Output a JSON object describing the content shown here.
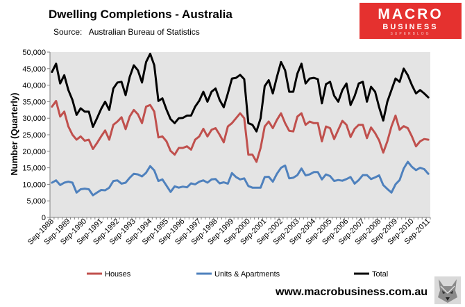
{
  "header": {
    "title": "Dwelling Completions - Australia",
    "source_label": "Source:",
    "source": "Australian Bureau of Statistics"
  },
  "logo": {
    "line1": "MACRO",
    "line2": "BUSINESS",
    "line3": "SUPERBLOG"
  },
  "footer": {
    "website": "www.macrobusiness.com.au"
  },
  "colors": {
    "houses": "#c0504d",
    "units": "#4f81bd",
    "total": "#000000",
    "plot_bg": "#e4e4e4",
    "logo": "#e5312f"
  },
  "chart_data": {
    "type": "line",
    "title": "Dwelling Completions - Australia",
    "xlabel": "",
    "ylabel": "Number (Quarterly)",
    "ylim": [
      0,
      50000
    ],
    "ytick_step": 5000,
    "ytick_labels": [
      "0",
      "5,000",
      "10,000",
      "15,000",
      "20,000",
      "25,000",
      "30,000",
      "35,000",
      "40,000",
      "45,000",
      "50,000"
    ],
    "x_start_label": "Sep-1988",
    "quarters_count": 93,
    "x_tick_labels": [
      "Sep-1988",
      "Sep-1989",
      "Sep-1990",
      "Sep-1991",
      "Sep-1992",
      "Sep-1993",
      "Sep-1994",
      "Sep-1995",
      "Sep-1996",
      "Sep-1997",
      "Sep-1998",
      "Sep-1999",
      "Sep-2000",
      "Sep-2001",
      "Sep-2002",
      "Sep-2003",
      "Sep-2004",
      "Sep-2005",
      "Sep-2006",
      "Sep-2007",
      "Sep-2008",
      "Sep-2009",
      "Sep-2010",
      "Sep-2011"
    ],
    "legend_position": "bottom",
    "series": [
      {
        "name": "Houses",
        "color": "#c0504d",
        "values": [
          33500,
          35200,
          30500,
          32000,
          27500,
          25000,
          23500,
          24500,
          23200,
          23500,
          20700,
          22500,
          24500,
          26300,
          23500,
          28000,
          29000,
          30300,
          26700,
          30500,
          32500,
          31200,
          28500,
          33500,
          34000,
          32000,
          24200,
          24500,
          23000,
          20100,
          19000,
          21000,
          21000,
          21500,
          20500,
          23500,
          24500,
          26800,
          24500,
          26500,
          27000,
          25000,
          22700,
          27500,
          28500,
          30000,
          31500,
          30000,
          19000,
          19000,
          16800,
          21000,
          27500,
          29000,
          27000,
          29500,
          31500,
          28500,
          26200,
          26000,
          30500,
          31500,
          28000,
          29000,
          28500,
          28500,
          23000,
          27500,
          27000,
          23700,
          26500,
          29200,
          28000,
          24300,
          26800,
          28000,
          28000,
          24000,
          27200,
          25500,
          23300,
          19600,
          23000,
          27500,
          30800,
          26500,
          27600,
          27000,
          24500,
          21500,
          23000,
          23700,
          23500
        ]
      },
      {
        "name": "Units & Apartments",
        "color": "#4f81bd",
        "values": [
          10500,
          11200,
          9800,
          10500,
          10800,
          10500,
          7500,
          8500,
          8700,
          8500,
          6700,
          7500,
          8300,
          8200,
          9000,
          11000,
          11200,
          10200,
          10500,
          12000,
          13200,
          13000,
          12400,
          13500,
          15500,
          14200,
          11000,
          11500,
          9600,
          7700,
          9400,
          9000,
          9300,
          9100,
          10300,
          10000,
          10800,
          11200,
          10500,
          11500,
          11600,
          10300,
          10600,
          10200,
          13400,
          12200,
          11500,
          11800,
          9500,
          9000,
          9000,
          9000,
          12200,
          12300,
          10800,
          13200,
          15000,
          15700,
          11800,
          12000,
          12800,
          14800,
          12700,
          13000,
          13700,
          13700,
          11500,
          13000,
          12500,
          11000,
          11300,
          11100,
          11600,
          12200,
          10200,
          11300,
          12800,
          12800,
          11600,
          12100,
          12700,
          9800,
          8600,
          7500,
          10000,
          11300,
          14800,
          16800,
          15300,
          14300,
          15000,
          14600,
          13200
        ]
      },
      {
        "name": "Total",
        "color": "#000000",
        "values": [
          44000,
          46500,
          40500,
          43000,
          38500,
          35500,
          31000,
          33000,
          32000,
          32000,
          27400,
          30000,
          32800,
          35000,
          32500,
          39000,
          40800,
          41000,
          37000,
          42500,
          46000,
          44500,
          40800,
          47000,
          49500,
          46000,
          35200,
          36000,
          32600,
          29700,
          28500,
          30000,
          30100,
          30800,
          30800,
          33500,
          35300,
          38000,
          35000,
          38000,
          39000,
          35500,
          33300,
          37500,
          42000,
          42200,
          43100,
          41800,
          28500,
          28000,
          26000,
          30000,
          39700,
          41500,
          37500,
          42500,
          47000,
          44500,
          38000,
          38000,
          43500,
          46500,
          40500,
          42000,
          42200,
          41800,
          34500,
          40300,
          41000,
          36800,
          35000,
          38500,
          40500,
          34000,
          36700,
          40500,
          41000,
          35000,
          39500,
          38000,
          33300,
          29300,
          35000,
          38500,
          42000,
          41000,
          45000,
          43000,
          40000,
          37500,
          38500,
          37500,
          36300
        ]
      }
    ]
  }
}
